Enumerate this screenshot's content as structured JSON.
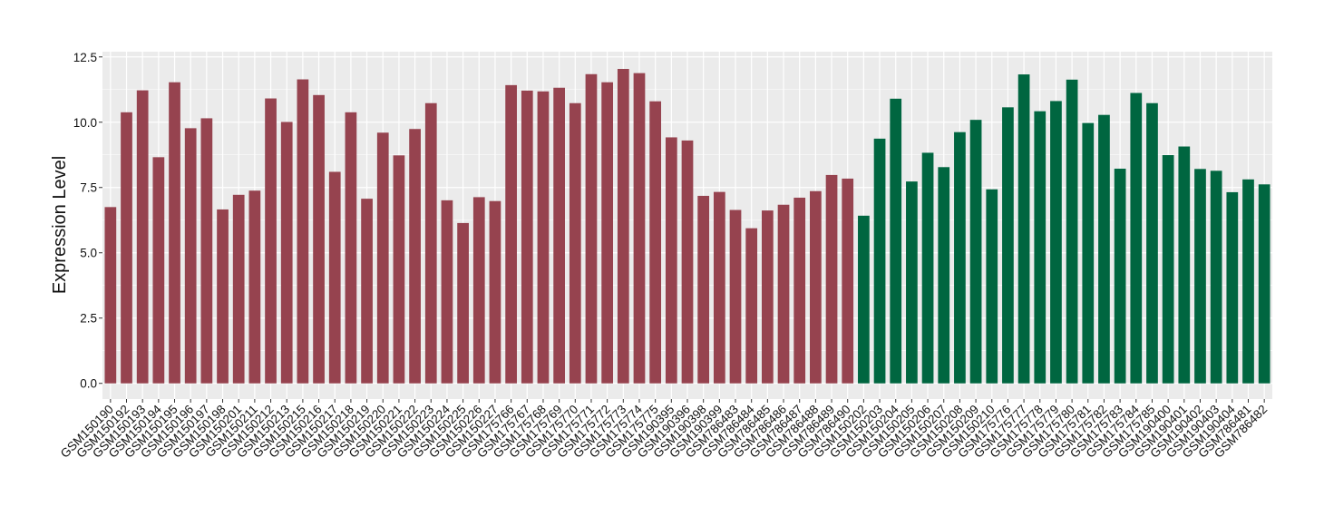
{
  "chart_data": {
    "type": "bar",
    "title": "",
    "xlabel": "",
    "ylabel": "Expression Level",
    "ylim": [
      -0.6,
      12.7
    ],
    "yticks": [
      "0.0",
      "2.5",
      "5.0",
      "7.5",
      "10.0",
      "12.5"
    ],
    "ytick_values": [
      0,
      2.5,
      5,
      7.5,
      10,
      12.5
    ],
    "grid": true,
    "legend": "none",
    "categories": [
      "GSM150190",
      "GSM150192",
      "GSM150193",
      "GSM150194",
      "GSM150195",
      "GSM150196",
      "GSM150197",
      "GSM150198",
      "GSM150201",
      "GSM150211",
      "GSM150212",
      "GSM150213",
      "GSM150215",
      "GSM150216",
      "GSM150217",
      "GSM150218",
      "GSM150219",
      "GSM150220",
      "GSM150221",
      "GSM150222",
      "GSM150223",
      "GSM150224",
      "GSM150225",
      "GSM150226",
      "GSM150227",
      "GSM175766",
      "GSM175767",
      "GSM175768",
      "GSM175769",
      "GSM175770",
      "GSM175771",
      "GSM175772",
      "GSM175773",
      "GSM175774",
      "GSM175775",
      "GSM190395",
      "GSM190396",
      "GSM190398",
      "GSM190399",
      "GSM786483",
      "GSM786484",
      "GSM786485",
      "GSM786486",
      "GSM786487",
      "GSM786488",
      "GSM786489",
      "GSM786490",
      "GSM150202",
      "GSM150203",
      "GSM150204",
      "GSM150205",
      "GSM150206",
      "GSM150207",
      "GSM150208",
      "GSM150209",
      "GSM150210",
      "GSM175776",
      "GSM175777",
      "GSM175778",
      "GSM175779",
      "GSM175780",
      "GSM175781",
      "GSM175782",
      "GSM175783",
      "GSM175784",
      "GSM175785",
      "GSM190400",
      "GSM190401",
      "GSM190402",
      "GSM190403",
      "GSM190404",
      "GSM786481",
      "GSM786482"
    ],
    "values": [
      6.75,
      10.38,
      11.22,
      8.66,
      11.53,
      9.77,
      10.15,
      6.66,
      7.22,
      7.38,
      10.91,
      10.01,
      11.64,
      11.04,
      8.1,
      10.38,
      7.07,
      9.6,
      8.73,
      9.74,
      10.73,
      7.01,
      6.14,
      7.13,
      6.98,
      11.42,
      11.21,
      11.18,
      11.32,
      10.73,
      11.84,
      11.53,
      12.04,
      11.88,
      10.8,
      9.42,
      9.3,
      7.18,
      7.33,
      6.64,
      5.94,
      6.62,
      6.84,
      7.11,
      7.36,
      7.98,
      7.84,
      6.42,
      9.37,
      10.9,
      7.73,
      8.83,
      8.28,
      9.62,
      10.09,
      7.43,
      10.57,
      11.83,
      10.42,
      10.81,
      11.63,
      9.97,
      10.28,
      8.22,
      11.12,
      10.73,
      8.74,
      9.07,
      8.21,
      8.14,
      7.32,
      7.81,
      7.62
    ],
    "group_sizes": [
      47,
      26
    ],
    "colors": [
      "#96434f",
      "#006640"
    ],
    "panel_color": "#ebebeb",
    "grid_color": "#ffffff"
  }
}
